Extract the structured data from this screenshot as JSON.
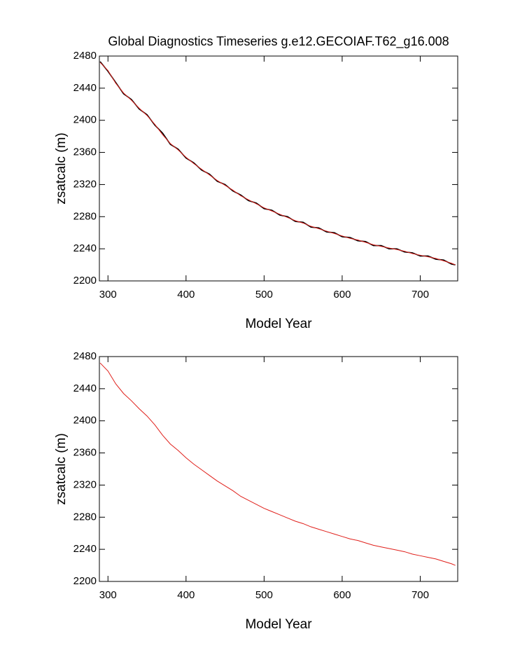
{
  "chart_data": [
    {
      "type": "line",
      "title": "Global Diagnostics Timeseries g.e12.GECOIAF.T62_g16.008",
      "xlabel": "Model Year",
      "ylabel": "zsatcalc (m)",
      "x": [
        290,
        300,
        310,
        320,
        330,
        340,
        350,
        360,
        370,
        380,
        390,
        400,
        410,
        420,
        430,
        440,
        450,
        460,
        470,
        480,
        490,
        500,
        510,
        520,
        530,
        540,
        550,
        560,
        570,
        580,
        590,
        600,
        610,
        620,
        630,
        640,
        650,
        660,
        670,
        680,
        690,
        700,
        710,
        720,
        730,
        740,
        745
      ],
      "series": [
        {
          "color": "#000000",
          "values": [
            2473,
            2461,
            2447,
            2433,
            2426,
            2414,
            2407,
            2394,
            2384,
            2370,
            2364,
            2353,
            2347,
            2338,
            2333,
            2324,
            2320,
            2312,
            2307,
            2300,
            2297,
            2290,
            2288,
            2282,
            2280,
            2274,
            2273,
            2267,
            2266,
            2261,
            2260,
            2255,
            2254,
            2250,
            2249,
            2244,
            2244,
            2240,
            2240,
            2236,
            2235,
            2231,
            2231,
            2227,
            2226,
            2221,
            2220
          ]
        },
        {
          "color": "#e0201b",
          "values": [
            2472,
            2462,
            2446,
            2434,
            2425,
            2415,
            2406,
            2395,
            2382,
            2371,
            2363,
            2354,
            2346,
            2339,
            2332,
            2325,
            2319,
            2313,
            2306,
            2301,
            2296,
            2291,
            2287,
            2283,
            2279,
            2275,
            2272,
            2268,
            2265,
            2262,
            2259,
            2256,
            2253,
            2251,
            2248,
            2245,
            2243,
            2241,
            2239,
            2237,
            2234,
            2232,
            2230,
            2228,
            2225,
            2222,
            2220
          ]
        }
      ],
      "xlim": [
        289,
        748
      ],
      "xticks": [
        300,
        400,
        500,
        600,
        700
      ],
      "ylim": [
        2200,
        2480
      ],
      "yticks": [
        2200,
        2240,
        2280,
        2320,
        2360,
        2400,
        2440,
        2480
      ]
    },
    {
      "type": "line",
      "xlabel": "Model Year",
      "ylabel": "zsatcalc (m)",
      "x": [
        290,
        300,
        310,
        320,
        330,
        340,
        350,
        360,
        370,
        380,
        390,
        400,
        410,
        420,
        430,
        440,
        450,
        460,
        470,
        480,
        490,
        500,
        510,
        520,
        530,
        540,
        550,
        560,
        570,
        580,
        590,
        600,
        610,
        620,
        630,
        640,
        650,
        660,
        670,
        680,
        690,
        700,
        710,
        720,
        730,
        740,
        745
      ],
      "series": [
        {
          "color": "#e0201b",
          "values": [
            2472,
            2462,
            2446,
            2434,
            2425,
            2415,
            2406,
            2395,
            2382,
            2371,
            2363,
            2354,
            2346,
            2339,
            2332,
            2325,
            2319,
            2313,
            2306,
            2301,
            2296,
            2291,
            2287,
            2283,
            2279,
            2275,
            2272,
            2268,
            2265,
            2262,
            2259,
            2256,
            2253,
            2251,
            2248,
            2245,
            2243,
            2241,
            2239,
            2237,
            2234,
            2232,
            2230,
            2228,
            2225,
            2222,
            2220
          ]
        }
      ],
      "xlim": [
        289,
        748
      ],
      "xticks": [
        300,
        400,
        500,
        600,
        700
      ],
      "ylim": [
        2200,
        2480
      ],
      "yticks": [
        2200,
        2240,
        2280,
        2320,
        2360,
        2400,
        2440,
        2480
      ]
    }
  ]
}
